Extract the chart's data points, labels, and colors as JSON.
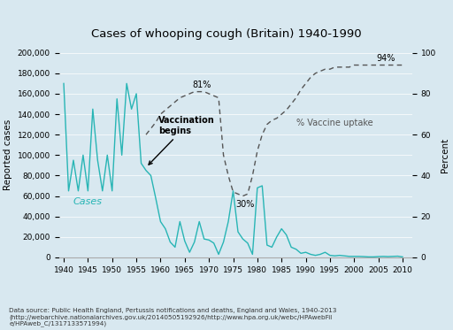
{
  "title": "Cases of whooping cough (Britain) 1940-1990",
  "ylabel_left": "Reported cases",
  "ylabel_right": "Percent",
  "caption": "Data source: Public Health England, Pertussis notifications and deaths, England and Wales, 1940-2013\n(http://webarchive.nationalarchives.gov.uk/20140505192926/http://www.hpa.org.uk/webc/HPAwebFil\ne/HPAweb_C/1317133571994)",
  "bg_color": "#d8e8f0",
  "cases_color": "#28b5b5",
  "vaccine_color": "#555555",
  "cases_years": [
    1940,
    1941,
    1942,
    1943,
    1944,
    1945,
    1946,
    1947,
    1948,
    1949,
    1950,
    1951,
    1952,
    1953,
    1954,
    1955,
    1956,
    1957,
    1958,
    1959,
    1960,
    1961,
    1962,
    1963,
    1964,
    1965,
    1966,
    1967,
    1968,
    1969,
    1970,
    1971,
    1972,
    1973,
    1974,
    1975,
    1976,
    1977,
    1978,
    1979,
    1980,
    1981,
    1982,
    1983,
    1984,
    1985,
    1986,
    1987,
    1988,
    1989,
    1990,
    1991,
    1992,
    1993,
    1994,
    1995,
    1996,
    1997,
    1998,
    1999,
    2000,
    2001,
    2002,
    2003,
    2004,
    2005,
    2006,
    2007,
    2008,
    2009,
    2010
  ],
  "cases_values": [
    170000,
    65000,
    95000,
    65000,
    100000,
    65000,
    145000,
    95000,
    65000,
    100000,
    65000,
    155000,
    100000,
    170000,
    145000,
    160000,
    92000,
    85000,
    80000,
    58000,
    35000,
    28000,
    15000,
    10000,
    35000,
    16000,
    5000,
    15000,
    35000,
    18000,
    17000,
    14000,
    3000,
    15000,
    35000,
    65000,
    25000,
    18000,
    14000,
    3000,
    68000,
    70000,
    12000,
    10000,
    20000,
    28000,
    22000,
    10000,
    8000,
    4000,
    5000,
    3000,
    2000,
    3000,
    5000,
    2000,
    1500,
    2000,
    1500,
    1000,
    1000,
    1000,
    800,
    500,
    500,
    800,
    1000,
    800,
    1000,
    1200,
    500
  ],
  "vaccine_years": [
    1957,
    1958,
    1959,
    1960,
    1961,
    1962,
    1963,
    1964,
    1965,
    1966,
    1967,
    1968,
    1969,
    1970,
    1971,
    1972,
    1973,
    1974,
    1975,
    1976,
    1977,
    1978,
    1979,
    1980,
    1981,
    1982,
    1983,
    1984,
    1985,
    1986,
    1987,
    1988,
    1989,
    1990,
    1991,
    1992,
    1993,
    1994,
    1995,
    1996,
    1997,
    1998,
    1999,
    2000,
    2001,
    2002,
    2003,
    2004,
    2005,
    2006,
    2007,
    2008,
    2009,
    2010
  ],
  "vaccine_values": [
    60,
    63,
    66,
    70,
    72,
    74,
    76,
    78,
    79,
    80,
    81,
    81,
    81,
    80,
    79,
    78,
    50,
    40,
    32,
    31,
    30,
    31,
    40,
    52,
    60,
    65,
    67,
    68,
    70,
    72,
    75,
    78,
    82,
    85,
    88,
    90,
    91,
    92,
    92,
    93,
    93,
    93,
    93,
    94,
    94,
    94,
    94,
    94,
    94,
    94,
    94,
    94,
    94,
    94
  ],
  "xlim": [
    1939,
    2012
  ],
  "ylim_left": [
    0,
    200000
  ],
  "ylim_right": [
    0,
    100
  ],
  "xticks": [
    1940,
    1945,
    1950,
    1955,
    1960,
    1965,
    1970,
    1975,
    1980,
    1985,
    1990,
    1995,
    2000,
    2005,
    2010
  ]
}
